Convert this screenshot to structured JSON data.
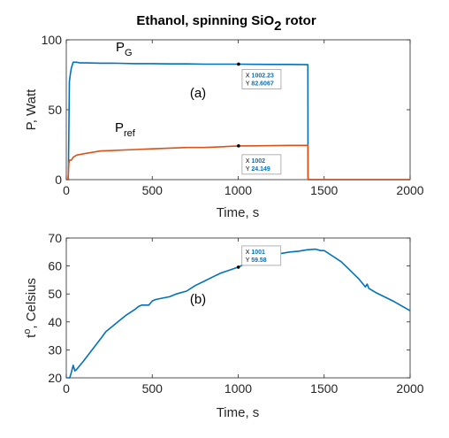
{
  "figure": {
    "title": "Ethanol, spinning SiO",
    "title_subscript": "2",
    "title_suffix": " rotor"
  },
  "chart_data": [
    {
      "type": "line",
      "panel_label": "(a)",
      "xlabel": "Time, s",
      "ylabel": "P, Watt",
      "xlim": [
        0,
        2000
      ],
      "ylim": [
        0,
        100
      ],
      "xticks": [
        0,
        500,
        1000,
        1500,
        2000
      ],
      "yticks": [
        0,
        50,
        100
      ],
      "grid": false,
      "series": [
        {
          "name": "P",
          "name_subscript": "G",
          "color": "#0072bd",
          "x": [
            0,
            12,
            18,
            24,
            30,
            40,
            60,
            80,
            120,
            200,
            300,
            400,
            500,
            600,
            700,
            800,
            900,
            1000,
            1100,
            1200,
            1300,
            1405,
            1406,
            1407,
            1410,
            1500,
            1600,
            1700,
            1800,
            1900,
            2000
          ],
          "y": [
            0,
            0,
            70,
            76,
            80,
            84,
            84,
            83.5,
            83.5,
            83.3,
            83.2,
            83,
            83,
            82.8,
            82.8,
            82.6,
            82.6,
            82.6,
            82.5,
            82.4,
            82.4,
            82.2,
            1.5,
            0,
            0,
            0,
            0,
            0,
            0,
            0,
            0
          ]
        },
        {
          "name": "P",
          "name_subscript": "ref",
          "color": "#d95319",
          "x": [
            0,
            10,
            12,
            15,
            20,
            30,
            40,
            60,
            100,
            150,
            200,
            300,
            400,
            500,
            600,
            700,
            800,
            900,
            1000,
            1100,
            1200,
            1300,
            1405,
            1406,
            1407,
            1410,
            1500,
            1600,
            1700,
            1800,
            1900,
            2000
          ],
          "y": [
            0,
            0,
            5,
            12,
            14,
            14,
            16,
            17.5,
            18.5,
            19.5,
            20.5,
            21,
            21.5,
            22,
            22.5,
            23,
            23,
            23.5,
            24.1,
            24.2,
            24.3,
            24.5,
            24.5,
            4,
            0,
            0,
            0,
            0,
            0,
            0,
            0,
            0
          ]
        }
      ],
      "datatips": [
        {
          "x_label": "X",
          "x_value": "1002.23",
          "y_label": "Y",
          "y_value": "82.6067",
          "x": 1002.23,
          "y": 82.6067
        },
        {
          "x_label": "X",
          "x_value": "1002",
          "y_label": "Y",
          "y_value": "24.149",
          "x": 1002,
          "y": 24.149
        }
      ]
    },
    {
      "type": "line",
      "panel_label": "(b)",
      "xlabel": "Time, s",
      "ylabel": "t",
      "ylabel_superscript": "o",
      "ylabel_suffix": ", Celsius",
      "xlim": [
        0,
        2000
      ],
      "ylim": [
        20,
        70
      ],
      "xticks": [
        0,
        500,
        1000,
        1500,
        2000
      ],
      "yticks": [
        20,
        30,
        40,
        50,
        60,
        70
      ],
      "grid": false,
      "series": [
        {
          "color": "#0072bd",
          "x": [
            0,
            20,
            30,
            40,
            50,
            60,
            80,
            100,
            150,
            200,
            230,
            260,
            300,
            350,
            400,
            420,
            440,
            480,
            500,
            520,
            560,
            600,
            640,
            700,
            750,
            800,
            850,
            900,
            950,
            1000,
            1050,
            1100,
            1150,
            1200,
            1250,
            1300,
            1350,
            1400,
            1450,
            1480,
            1500,
            1550,
            1600,
            1650,
            1700,
            1740,
            1750,
            1760,
            1800,
            1900,
            2000
          ],
          "y": [
            20,
            20,
            22,
            24.5,
            22.5,
            23,
            24.5,
            26,
            30,
            34,
            36.5,
            38,
            40,
            42.5,
            44.5,
            45.5,
            46,
            46,
            47.5,
            48,
            48.5,
            49,
            50,
            51,
            53,
            54.5,
            56,
            57.5,
            58.5,
            59.6,
            61,
            62,
            63.5,
            64,
            64.5,
            65,
            65.3,
            65.8,
            66,
            65.5,
            65.5,
            63.5,
            61.5,
            58.5,
            55.5,
            52.5,
            53.5,
            52,
            50.5,
            47.5,
            44
          ]
        }
      ],
      "datatips": [
        {
          "x_label": "X",
          "x_value": "1001",
          "y_label": "Y",
          "y_value": "59.58",
          "x": 1001,
          "y": 59.58
        }
      ]
    }
  ]
}
